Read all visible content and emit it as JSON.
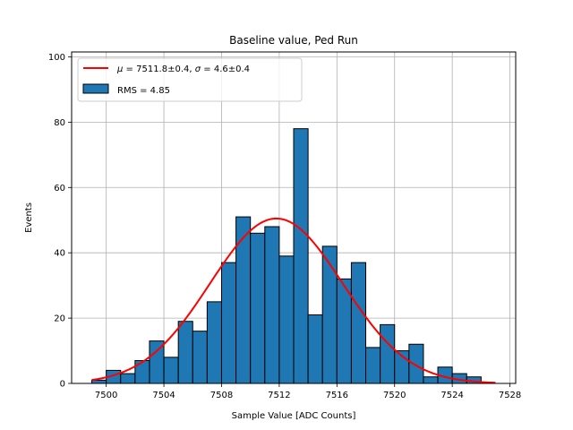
{
  "chart_data": {
    "type": "bar",
    "title": "Baseline value, Ped Run",
    "xlabel": "Sample Value [ADC Counts]",
    "ylabel": "Events",
    "xlim": [
      7497.6,
      7528.4
    ],
    "ylim": [
      0,
      101.5
    ],
    "xticks": [
      7500,
      7504,
      7508,
      7512,
      7516,
      7520,
      7524,
      7528
    ],
    "yticks": [
      0,
      20,
      40,
      60,
      80,
      100
    ],
    "grid": true,
    "bin_width": 1,
    "histogram": {
      "name": "RMS = 4.85",
      "color": "#1f77b4",
      "bin_lefts": [
        7499,
        7500,
        7501,
        7502,
        7503,
        7504,
        7505,
        7506,
        7507,
        7508,
        7509,
        7510,
        7511,
        7512,
        7513,
        7514,
        7515,
        7516,
        7517,
        7518,
        7519,
        7520,
        7521,
        7522,
        7523,
        7524,
        7525
      ],
      "values": [
        1,
        4,
        3,
        7,
        13,
        8,
        19,
        16,
        25,
        37,
        51,
        46,
        48,
        39,
        78,
        21,
        42,
        32,
        37,
        11,
        18,
        10,
        12,
        2,
        5,
        3,
        2
      ]
    },
    "fit": {
      "name": "μ = 7511.8±0.4, σ = 4.6±0.4",
      "label_prefix_mu": "μ",
      "label_mid": " = 7511.8±0.4, ",
      "label_prefix_sigma": "σ",
      "label_tail": " = 4.6±0.4",
      "color": "#ff0000",
      "mu": 7511.8,
      "sigma": 4.6,
      "amplitude": 50.5,
      "x_range": [
        7499,
        7527
      ]
    },
    "legend_location": "upper-left"
  }
}
